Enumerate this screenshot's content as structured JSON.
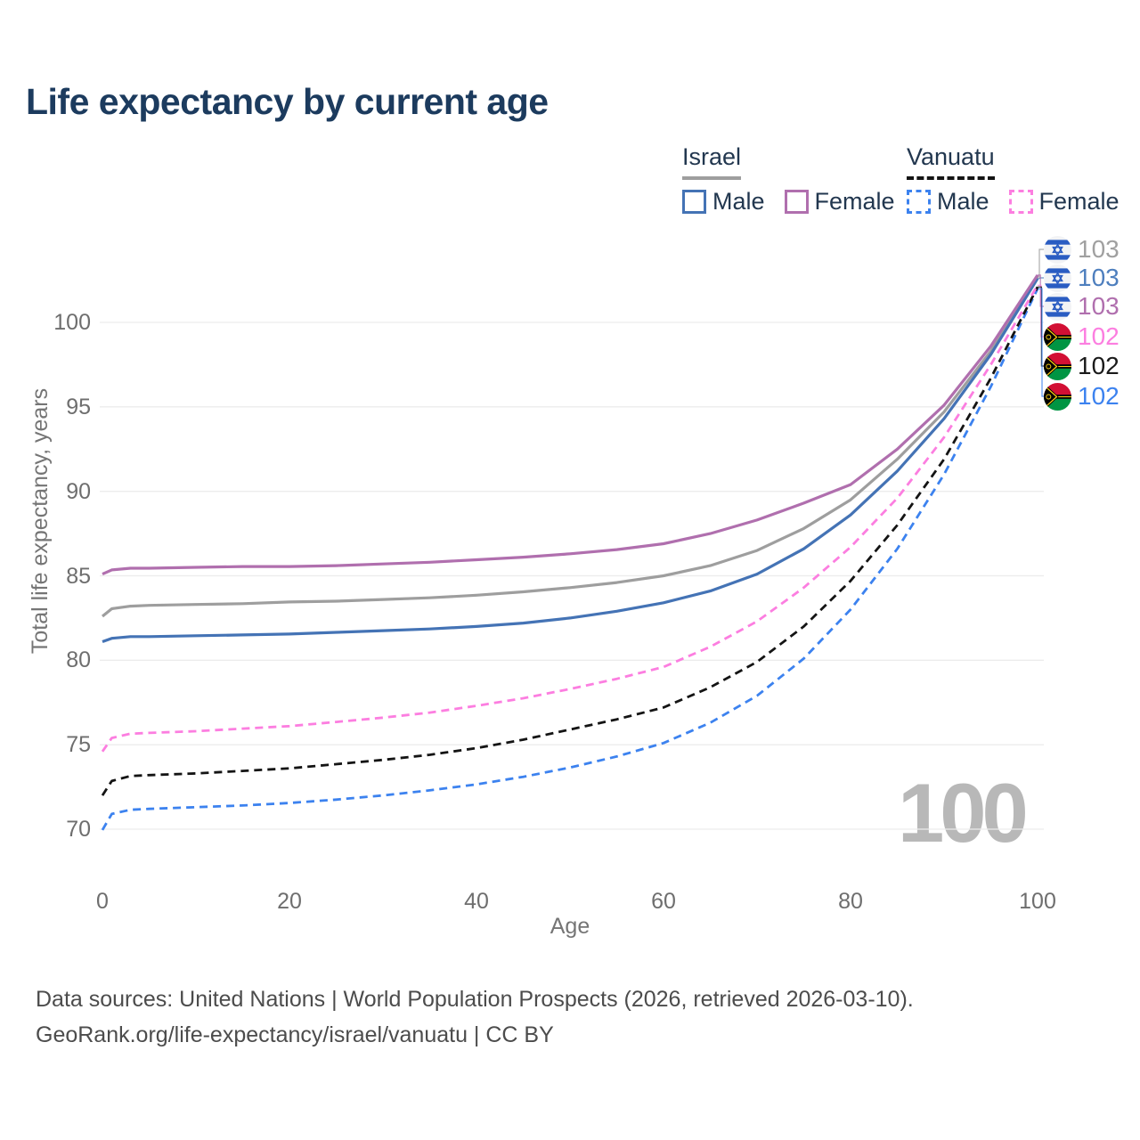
{
  "title": "Life expectancy by current age",
  "legend": {
    "groups": [
      {
        "label": "Israel",
        "line_style": "solid",
        "line_color": "#9e9e9e",
        "items": [
          {
            "label": "Male",
            "color": "#4473b5",
            "dashed": false
          },
          {
            "label": "Female",
            "color": "#b06fae",
            "dashed": false
          }
        ]
      },
      {
        "label": "Vanuatu",
        "line_style": "dashed",
        "line_color": "#141414",
        "items": [
          {
            "label": "Male",
            "color": "#3c82ef",
            "dashed": true
          },
          {
            "label": "Female",
            "color": "#fc7ee0",
            "dashed": true
          }
        ]
      }
    ]
  },
  "watermark": "100",
  "footer": {
    "line1": "Data sources: United Nations | World Population Prospects (2026, retrieved 2026-03-10).",
    "line2": "GeoRank.org/life-expectancy/israel/vanuatu | CC BY"
  },
  "chart_data": {
    "type": "line",
    "title": "Life expectancy by current age",
    "xlabel": "Age",
    "ylabel": "Total life expectancy, years",
    "xlim": [
      0,
      100
    ],
    "ylim": [
      69.5,
      103.5
    ],
    "x_ticks": [
      0,
      20,
      40,
      60,
      80,
      100
    ],
    "y_ticks": [
      70,
      75,
      80,
      85,
      90,
      95,
      100
    ],
    "grid": "horizontal",
    "legend_position": "top-right",
    "ages": [
      0,
      1,
      3,
      5,
      10,
      15,
      20,
      25,
      30,
      35,
      40,
      45,
      50,
      55,
      60,
      65,
      70,
      75,
      80,
      85,
      90,
      95,
      100
    ],
    "series": [
      {
        "name": "Israel Total",
        "country": "Israel",
        "sex": "Both",
        "color": "#9e9e9e",
        "dashed": false,
        "end_label": "103",
        "values": [
          82.6,
          83.05,
          83.2,
          83.25,
          83.3,
          83.35,
          83.45,
          83.5,
          83.6,
          83.7,
          83.85,
          84.05,
          84.3,
          84.6,
          85.0,
          85.6,
          86.5,
          87.8,
          89.5,
          91.9,
          94.7,
          98.3,
          102.7
        ]
      },
      {
        "name": "Israel Male",
        "country": "Israel",
        "sex": "Male",
        "color": "#4473b5",
        "dashed": false,
        "end_label": "103",
        "values": [
          81.1,
          81.3,
          81.4,
          81.4,
          81.45,
          81.5,
          81.55,
          81.65,
          81.75,
          81.85,
          82.0,
          82.2,
          82.5,
          82.9,
          83.4,
          84.1,
          85.1,
          86.6,
          88.6,
          91.2,
          94.3,
          98.1,
          102.6
        ]
      },
      {
        "name": "Israel Female",
        "country": "Israel",
        "sex": "Female",
        "color": "#b06fae",
        "dashed": false,
        "end_label": "103",
        "values": [
          85.1,
          85.35,
          85.45,
          85.45,
          85.5,
          85.55,
          85.55,
          85.6,
          85.7,
          85.8,
          85.95,
          86.1,
          86.3,
          86.55,
          86.9,
          87.5,
          88.3,
          89.3,
          90.4,
          92.5,
          95.1,
          98.6,
          102.8
        ]
      },
      {
        "name": "Vanuatu Male",
        "country": "Vanuatu",
        "sex": "Male",
        "color": "#3c82ef",
        "dashed": true,
        "end_label": "102",
        "values": [
          69.95,
          70.9,
          71.15,
          71.2,
          71.3,
          71.4,
          71.55,
          71.75,
          72.0,
          72.3,
          72.65,
          73.1,
          73.65,
          74.3,
          75.1,
          76.3,
          77.9,
          80.1,
          83.0,
          86.6,
          91.0,
          96.2,
          102.0
        ]
      },
      {
        "name": "Vanuatu Total",
        "country": "Vanuatu",
        "sex": "Both",
        "color": "#141414",
        "dashed": true,
        "end_label": "102",
        "values": [
          72.0,
          72.85,
          73.15,
          73.2,
          73.3,
          73.45,
          73.6,
          73.85,
          74.1,
          74.4,
          74.8,
          75.3,
          75.9,
          76.5,
          77.2,
          78.4,
          79.9,
          82.0,
          84.7,
          88.0,
          91.9,
          96.7,
          102.1
        ]
      },
      {
        "name": "Vanuatu Female",
        "country": "Vanuatu",
        "sex": "Female",
        "color": "#fc7ee0",
        "dashed": true,
        "end_label": "102",
        "values": [
          74.6,
          75.4,
          75.65,
          75.7,
          75.8,
          75.95,
          76.1,
          76.35,
          76.6,
          76.9,
          77.3,
          77.75,
          78.3,
          78.9,
          79.6,
          80.8,
          82.3,
          84.3,
          86.7,
          89.6,
          93.2,
          97.5,
          102.2
        ]
      }
    ],
    "end_labels": [
      {
        "value": "103",
        "color": "#a0a0a0",
        "flag": "israel",
        "series": "Israel Total"
      },
      {
        "value": "103",
        "color": "#4e7fbe",
        "flag": "israel",
        "series": "Israel Male"
      },
      {
        "value": "103",
        "color": "#b06fae",
        "flag": "israel",
        "series": "Israel Female"
      },
      {
        "value": "102",
        "color": "#fc7ee0",
        "flag": "vanuatu",
        "series": "Vanuatu Female"
      },
      {
        "value": "102",
        "color": "#1a1a1a",
        "flag": "vanuatu",
        "series": "Vanuatu Total"
      },
      {
        "value": "102",
        "color": "#3c82ef",
        "flag": "vanuatu",
        "series": "Vanuatu Male"
      }
    ]
  }
}
